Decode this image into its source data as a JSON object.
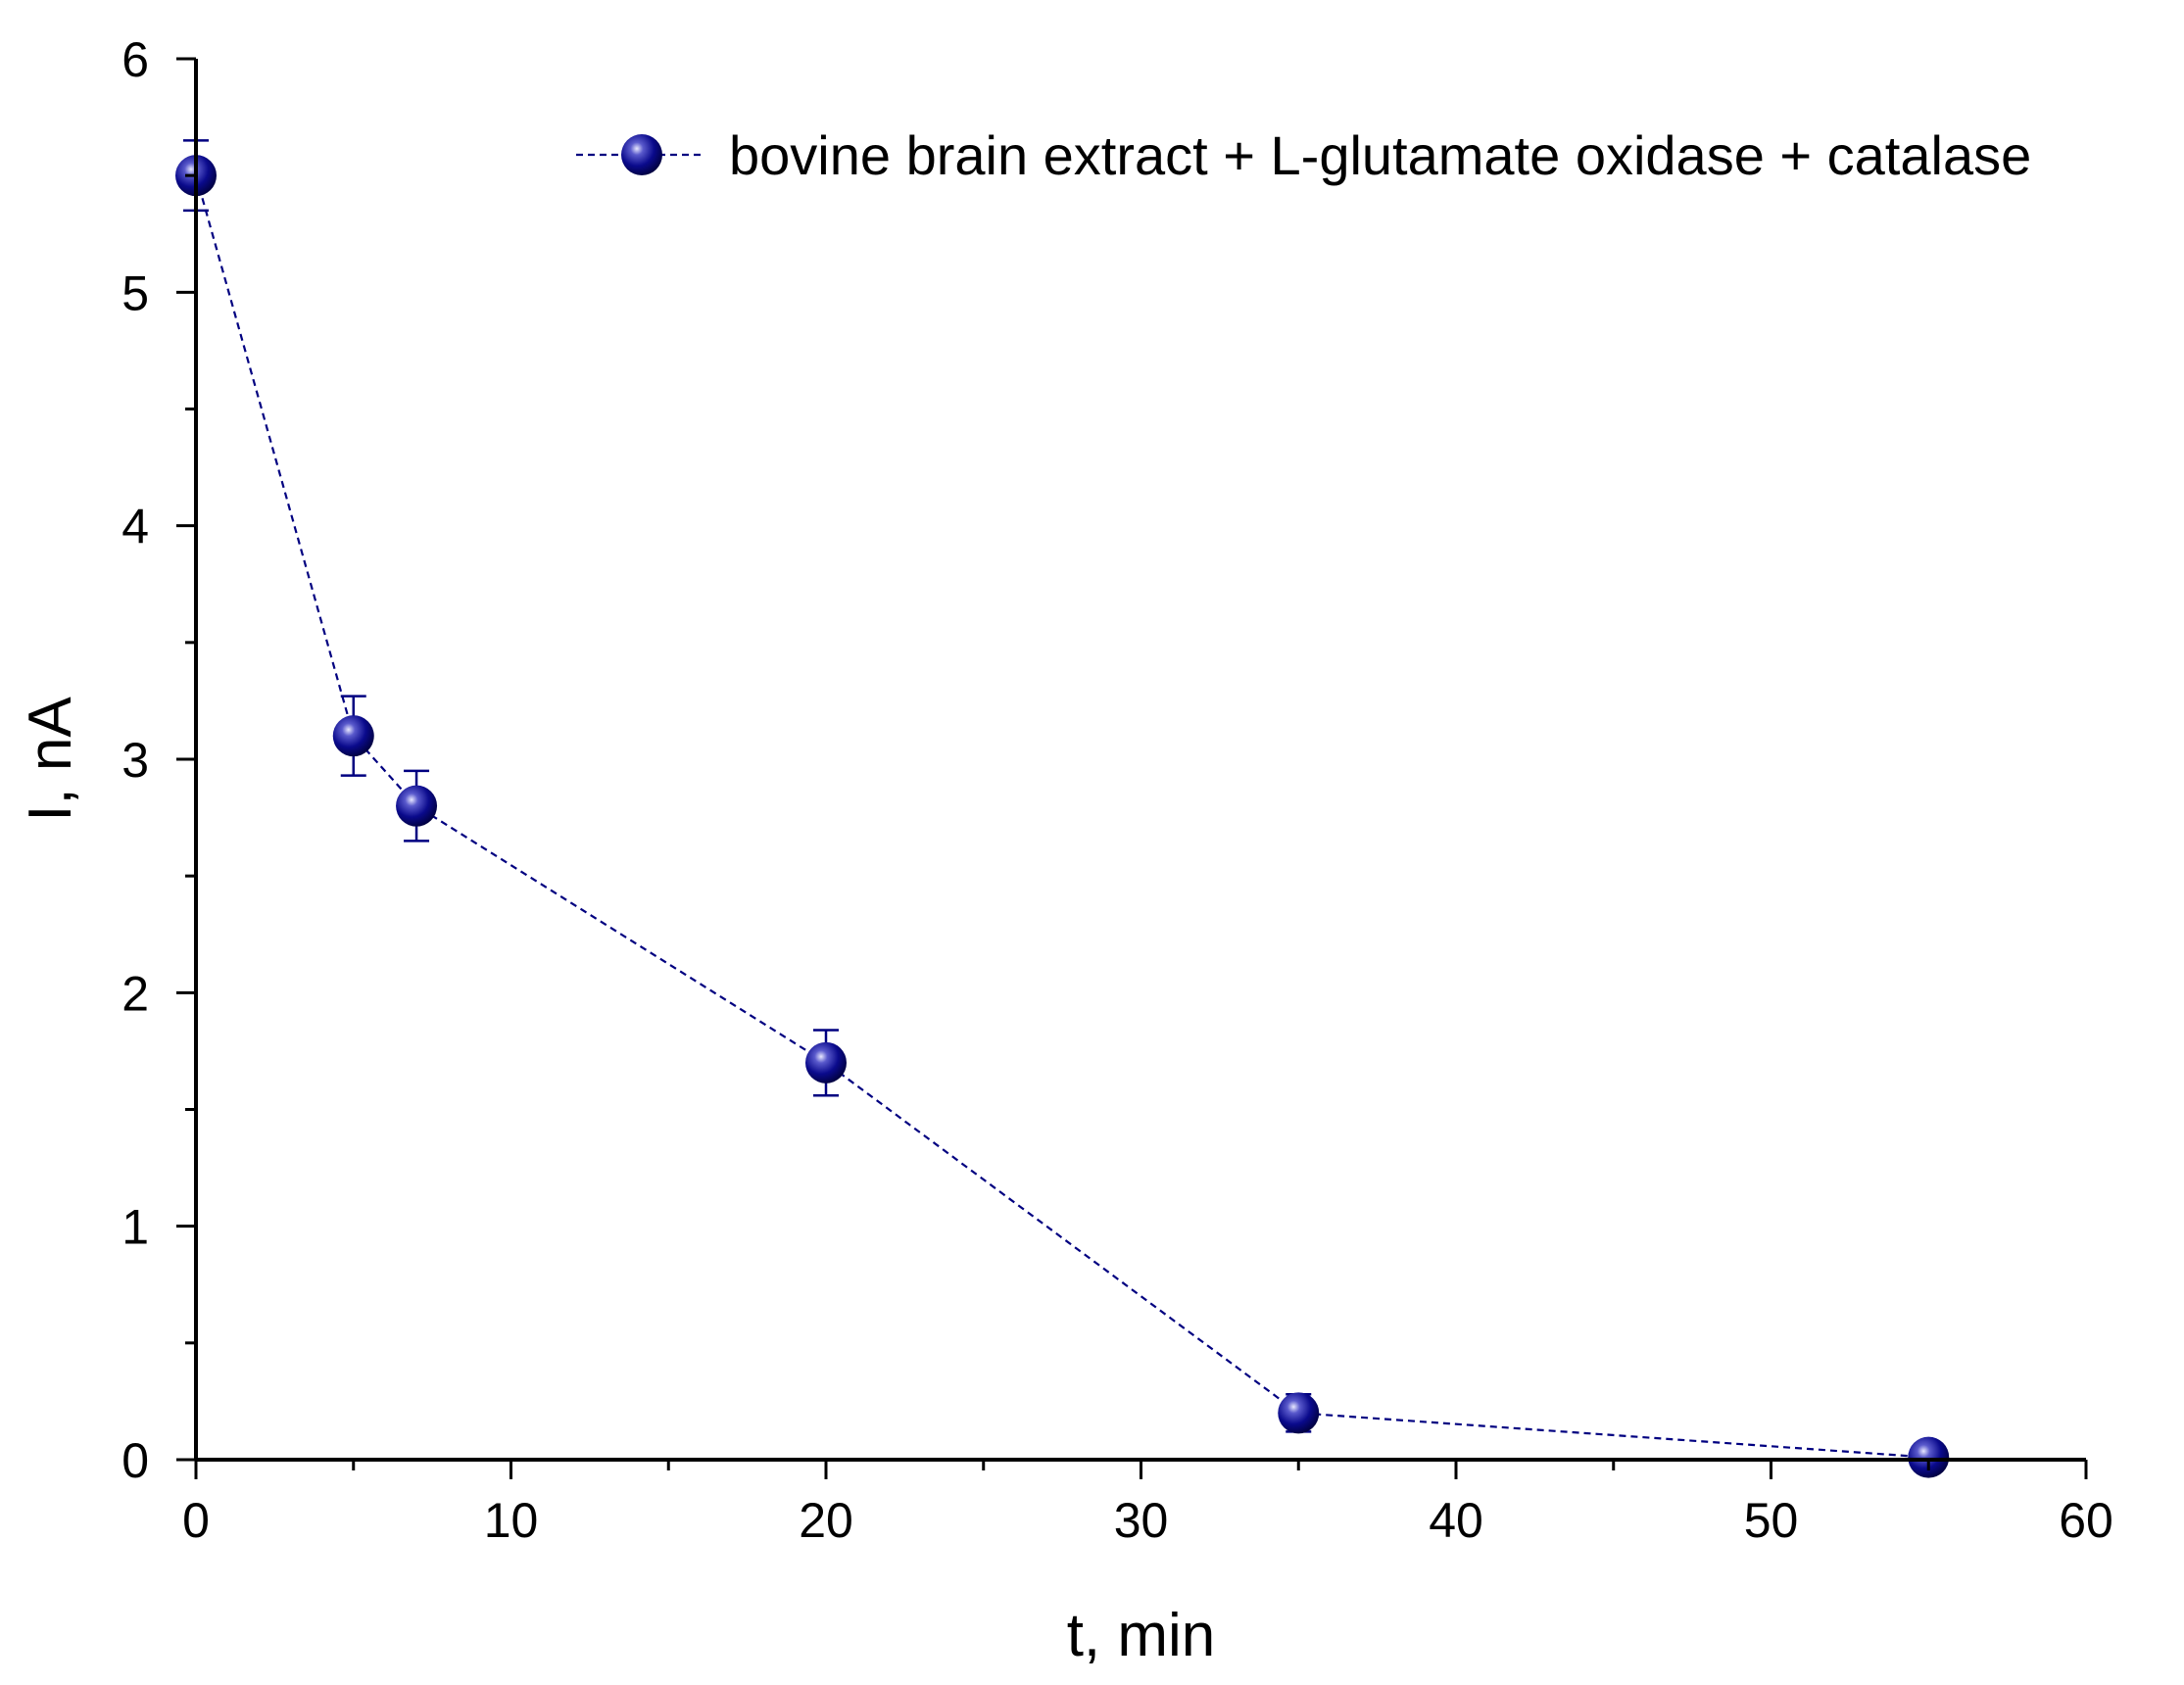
{
  "chart_data": {
    "type": "scatter",
    "title": "",
    "xlabel": "t, min",
    "ylabel": "I, nA",
    "xlim": [
      0,
      60
    ],
    "ylim": [
      0,
      6
    ],
    "xticks": [
      0,
      10,
      20,
      30,
      40,
      50,
      60
    ],
    "yticks": [
      0,
      1,
      2,
      3,
      4,
      5,
      6
    ],
    "grid": false,
    "legend_position": "top-right",
    "series": [
      {
        "name": "bovine brain extract + L-glutamate oxidase + catalase",
        "color": "#000080",
        "line_style": "dashed",
        "x": [
          0,
          5,
          7,
          20,
          35,
          55
        ],
        "y": [
          5.5,
          3.1,
          2.8,
          1.7,
          0.2,
          0.01
        ],
        "error": [
          0.15,
          0.17,
          0.15,
          0.14,
          0.08,
          0.03
        ]
      }
    ]
  }
}
